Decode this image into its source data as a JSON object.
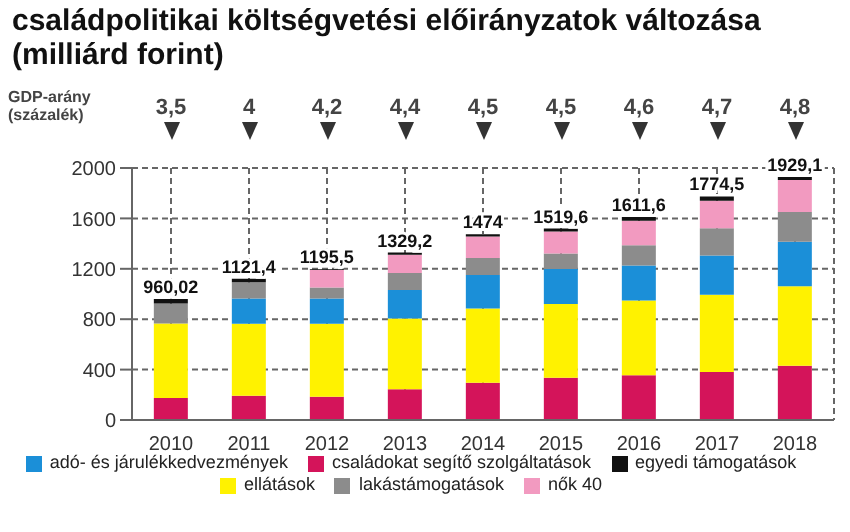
{
  "chart_data": {
    "type": "bar",
    "title": "családpolitikai költségvetési előirányzatok változása (milliárd forint)",
    "stacked": true,
    "categories": [
      "2010",
      "2011",
      "2012",
      "2013",
      "2014",
      "2015",
      "2016",
      "2017",
      "2018"
    ],
    "series": [
      {
        "name": "családokat segítő szolgáltatások",
        "color": "#d4145a",
        "values": [
          175,
          193,
          185,
          245,
          295,
          335,
          355,
          381,
          430
        ]
      },
      {
        "name": "ellátások",
        "color": "#fff200",
        "values": [
          590.02,
          570.4,
          578,
          560.2,
          590,
          586.6,
          593.6,
          613.5,
          631.1
        ]
      },
      {
        "name": "adó- és járulékkedvezmények",
        "color": "#1b8fd8",
        "values": [
          0,
          200,
          202,
          227,
          265,
          276,
          278,
          311,
          354
        ]
      },
      {
        "name": "lakástámogatások",
        "color": "#8c8c8c",
        "values": [
          160,
          130,
          87,
          134,
          136,
          123,
          160,
          217,
          236
        ]
      },
      {
        "name": "nők 40",
        "color": "#f29ac0",
        "values": [
          0,
          0,
          138,
          146,
          171,
          176,
          195,
          217,
          254
        ]
      },
      {
        "name": "egyedi támogatások",
        "color": "#111111",
        "values": [
          35,
          28,
          5.5,
          17,
          17,
          23,
          30,
          35,
          24
        ]
      }
    ],
    "totals": [
      "960,02",
      "1121,4",
      "1195,5",
      "1329,2",
      "1474",
      "1519,6",
      "1611,6",
      "1774,5",
      "1929,1"
    ],
    "annotations": [
      "GDP-arány (százalék)",
      "3,5",
      "4",
      "4,2",
      "4,4",
      "4,5",
      "4,5",
      "4,6",
      "4,7",
      "4,8"
    ],
    "ylim": [
      0,
      2000
    ],
    "yticks": [
      0,
      400,
      800,
      1200,
      1600,
      2000
    ],
    "grid": true,
    "legend": "bottom"
  }
}
